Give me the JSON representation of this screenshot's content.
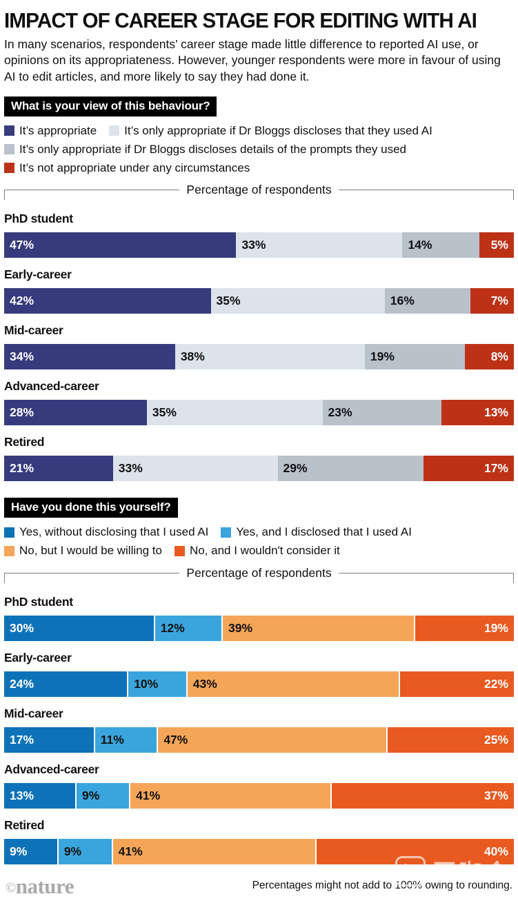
{
  "header": {
    "title": "IMPACT OF CAREER STAGE FOR EDITING WITH AI",
    "intro": "In many scenarios, respondents’ career stage made little difference to reported AI use, or opinions on its appropriateness. However, younger respondents were more in favour of using AI to edit articles, and more likely to say they had done it."
  },
  "footer": {
    "credit": "nature",
    "note": "Percentages might not add to 100% owing to rounding."
  },
  "watermark": "医咖会",
  "chart_data": [
    {
      "type": "bar",
      "orientation": "horizontal",
      "stacked": true,
      "title": "What is your view of this behaviour?",
      "xlabel": "Percentage of respondents",
      "xlim": [
        0,
        100
      ],
      "separators": false,
      "categories": [
        "PhD student",
        "Early-career",
        "Mid-career",
        "Advanced-career",
        "Retired"
      ],
      "series": [
        {
          "name": "It’s appropriate",
          "color": "#373b7d",
          "label_color": "#ffffff",
          "label_align": "left",
          "values": [
            47,
            42,
            34,
            28,
            21
          ]
        },
        {
          "name": "It’s only appropriate if Dr Bloggs discloses that they used AI",
          "color": "#dce3ea",
          "label_color": "#101010",
          "label_align": "left",
          "values": [
            33,
            35,
            38,
            35,
            33
          ]
        },
        {
          "name": "It’s only appropriate if Dr Bloggs discloses details of the prompts they used",
          "color": "#b9c1cb",
          "label_color": "#101010",
          "label_align": "left",
          "values": [
            14,
            16,
            19,
            23,
            29
          ]
        },
        {
          "name": "It’s not appropriate under any circumstances",
          "color": "#bd3217",
          "label_color": "#ffffff",
          "label_align": "right",
          "values": [
            5,
            7,
            8,
            13,
            17
          ]
        }
      ]
    },
    {
      "type": "bar",
      "orientation": "horizontal",
      "stacked": true,
      "title": "Have you done this yourself?",
      "xlabel": "Percentage of respondents",
      "xlim": [
        0,
        100
      ],
      "separators": true,
      "categories": [
        "PhD student",
        "Early-career",
        "Mid-career",
        "Advanced-career",
        "Retired"
      ],
      "series": [
        {
          "name": "Yes, without disclosing that I used AI",
          "color": "#0e72b8",
          "label_color": "#ffffff",
          "label_align": "left",
          "values": [
            30,
            24,
            17,
            13,
            9
          ]
        },
        {
          "name": "Yes, and I disclosed that I used AI",
          "color": "#3aa5dc",
          "label_color": "#101010",
          "label_align": "left",
          "values": [
            12,
            10,
            11,
            9,
            9
          ]
        },
        {
          "name": "No, but I would be willing to",
          "color": "#f5a558",
          "label_color": "#101010",
          "label_align": "left",
          "values": [
            39,
            43,
            47,
            41,
            41
          ]
        },
        {
          "name": "No, and I wouldn't consider it",
          "color": "#e95a20",
          "label_color": "#ffffff",
          "label_align": "right",
          "values": [
            19,
            22,
            25,
            37,
            40
          ]
        }
      ]
    }
  ]
}
